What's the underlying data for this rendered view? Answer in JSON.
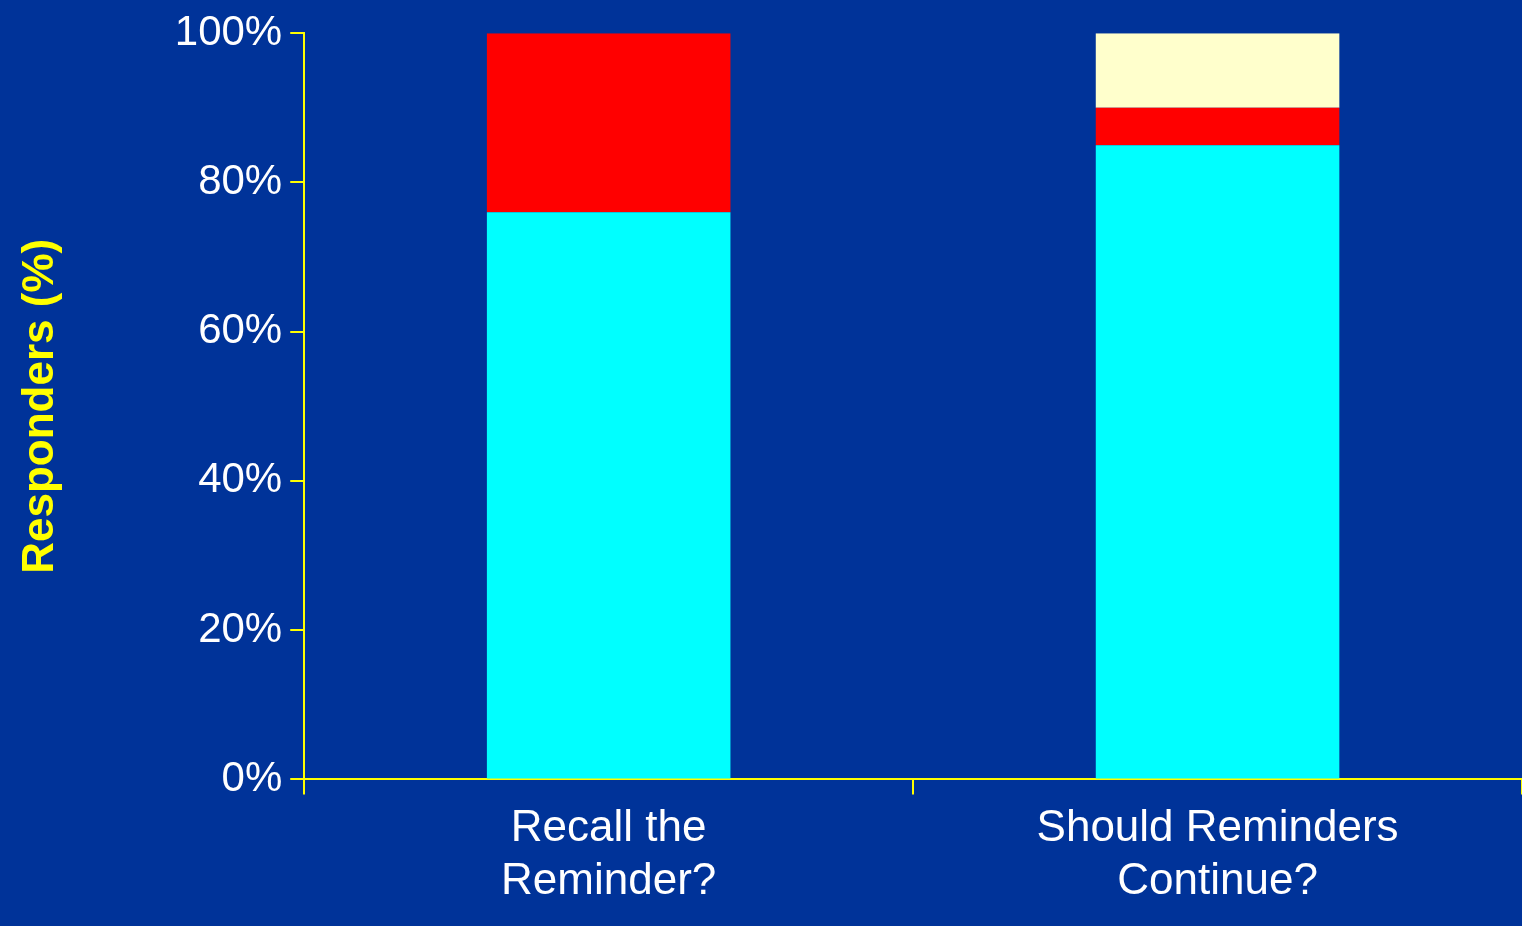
{
  "chart_data": {
    "type": "bar",
    "ylabel": "Responders (%)",
    "categories": [
      "Recall the Reminder?",
      "Should Reminders Continue?"
    ],
    "stacked": true,
    "series": [
      {
        "color": "#00ffff",
        "values": [
          76,
          85
        ]
      },
      {
        "color": "#ff0000",
        "values": [
          24,
          5
        ]
      },
      {
        "color": "#ffffcc",
        "values": [
          null,
          10
        ]
      }
    ],
    "ylim": [
      0,
      100
    ],
    "yticks": [
      {
        "value": 0,
        "label": "0%"
      },
      {
        "value": 20,
        "label": "20%"
      },
      {
        "value": 40,
        "label": "40%"
      },
      {
        "value": 60,
        "label": "60%"
      },
      {
        "value": 80,
        "label": "80%"
      },
      {
        "value": 100,
        "label": "100%"
      }
    ],
    "grid": false,
    "legend": false
  }
}
